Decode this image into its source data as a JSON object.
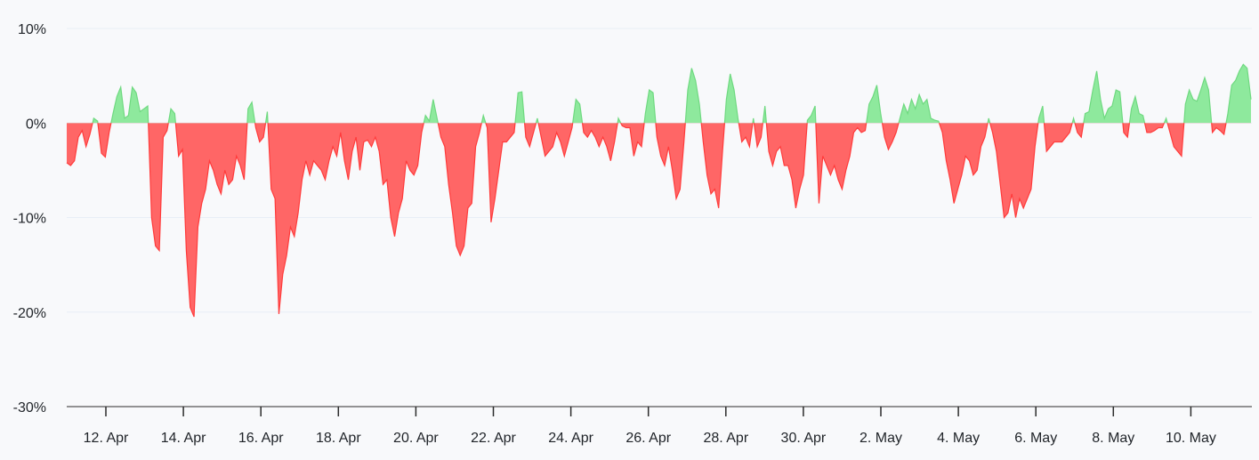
{
  "chart_data": {
    "type": "area",
    "title": "",
    "xlabel": "",
    "ylabel": "",
    "ylim": [
      -30,
      10
    ],
    "y_ticks": [
      10,
      0,
      -10,
      -20,
      -30
    ],
    "y_tick_labels": [
      "10%",
      "0%",
      "-10%",
      "-20%",
      "-30%"
    ],
    "x_ticks": [
      "12. Apr",
      "14. Apr",
      "16. Apr",
      "18. Apr",
      "20. Apr",
      "22. Apr",
      "24. Apr",
      "26. Apr",
      "28. Apr",
      "30. Apr",
      "2. May",
      "4. May",
      "6. May",
      "8. May",
      "10. May"
    ],
    "x_range": [
      "11. Apr",
      "12. May"
    ],
    "grid": true,
    "positive_color": "#8ee99d",
    "negative_color": "#ff6666",
    "positive_line_color": "#6fd980",
    "negative_line_color": "#ff3b3b",
    "series": [
      {
        "values": [
          -4.2,
          -4.5,
          -4.0,
          -1.5,
          -0.8,
          -2.5,
          -1.2,
          0.5,
          0.2,
          -3.2,
          -3.6,
          -1.0,
          1.0,
          2.8,
          3.8,
          0.5,
          0.8,
          3.8,
          3.2,
          1.2,
          1.5,
          1.8,
          -10.0,
          -13.0,
          -13.5,
          -1.5,
          -0.8,
          1.5,
          1.0,
          -3.5,
          -2.8,
          -13.5,
          -19.5,
          -20.5,
          -11.0,
          -8.5,
          -7.0,
          -4.0,
          -5.0,
          -6.5,
          -7.5,
          -5.0,
          -6.5,
          -6.0,
          -3.5,
          -4.5,
          -6.0,
          1.5,
          2.2,
          -0.5,
          -2.0,
          -1.5,
          1.2,
          -7.0,
          -8.0,
          -20.2,
          -16.0,
          -14.0,
          -11.0,
          -12.0,
          -9.5,
          -6.0,
          -4.0,
          -5.5,
          -4.0,
          -4.5,
          -5.0,
          -6.0,
          -4.0,
          -2.5,
          -3.5,
          -1.0,
          -4.0,
          -6.0,
          -3.0,
          -1.5,
          -5.0,
          -2.0,
          -1.8,
          -2.5,
          -1.5,
          -3.0,
          -6.5,
          -6.0,
          -10.0,
          -12.0,
          -9.5,
          -8.0,
          -4.0,
          -5.0,
          -5.5,
          -4.5,
          -1.0,
          0.8,
          0.2,
          2.5,
          0.5,
          -1.5,
          -2.5,
          -6.5,
          -9.5,
          -13.0,
          -14.0,
          -13.0,
          -9.0,
          -8.5,
          -2.5,
          -1.0,
          0.8,
          -0.5,
          -10.5,
          -8.0,
          -5.0,
          -2.0,
          -2.0,
          -1.5,
          -1.0,
          3.2,
          3.3,
          -1.5,
          -2.5,
          -1.0,
          0.5,
          -1.5,
          -3.5,
          -3.0,
          -2.5,
          -1.0,
          -2.0,
          -3.5,
          -2.0,
          -0.5,
          2.5,
          2.0,
          -1.0,
          -1.5,
          -0.8,
          -1.5,
          -2.5,
          -1.5,
          -2.5,
          -4.0,
          -2.0,
          0.5,
          -0.3,
          -0.5,
          -0.5,
          -3.5,
          -2.0,
          -2.5,
          1.0,
          3.5,
          3.2,
          -1.5,
          -3.5,
          -4.5,
          -2.5,
          -5.0,
          -8.0,
          -7.0,
          -2.0,
          3.5,
          5.8,
          4.5,
          2.0,
          -2.0,
          -5.5,
          -7.5,
          -7.0,
          -9.0,
          -3.0,
          2.5,
          5.2,
          3.5,
          0.5,
          -2.0,
          -1.5,
          -2.5,
          0.5,
          -2.5,
          -1.5,
          1.8,
          -3.0,
          -4.5,
          -3.0,
          -2.5,
          -4.5,
          -4.5,
          -6.0,
          -9.0,
          -7.0,
          -5.5,
          0.3,
          0.8,
          1.8,
          -8.5,
          -3.5,
          -4.5,
          -5.5,
          -4.5,
          -6.0,
          -7.0,
          -5.0,
          -3.5,
          -1.0,
          -0.5,
          -1.0,
          -0.8,
          2.0,
          2.8,
          4.0,
          1.0,
          -1.5,
          -2.8,
          -2.0,
          -1.0,
          0.5,
          2.0,
          1.0,
          2.5,
          1.5,
          3.0,
          2.0,
          2.5,
          0.5,
          0.3,
          0.2,
          -1.0,
          -4.0,
          -6.0,
          -8.5,
          -7.0,
          -5.5,
          -3.5,
          -4.0,
          -5.5,
          -5.0,
          -2.5,
          -1.5,
          0.5,
          -1.0,
          -3.0,
          -6.5,
          -10.0,
          -9.5,
          -7.5,
          -10.0,
          -8.0,
          -9.0,
          -8.0,
          -7.0,
          -2.5,
          0.5,
          1.8,
          -3.0,
          -2.5,
          -2.0,
          -2.0,
          -2.0,
          -1.5,
          -1.0,
          0.5,
          -1.0,
          -1.5,
          1.0,
          1.2,
          3.5,
          5.5,
          2.5,
          0.5,
          1.5,
          1.8,
          3.5,
          3.3,
          -1.0,
          -1.5,
          1.5,
          2.8,
          1.0,
          0.8,
          -1.0,
          -1.0,
          -0.8,
          -0.5,
          -0.5,
          0.5,
          -1.0,
          -2.5,
          -3.0,
          -3.5,
          2.0,
          3.5,
          2.5,
          2.3,
          3.5,
          4.8,
          3.5,
          -1.0,
          -0.5,
          -0.8,
          -1.2,
          1.0,
          4.0,
          4.5,
          5.5,
          6.2,
          5.8,
          2.5
        ]
      }
    ]
  }
}
